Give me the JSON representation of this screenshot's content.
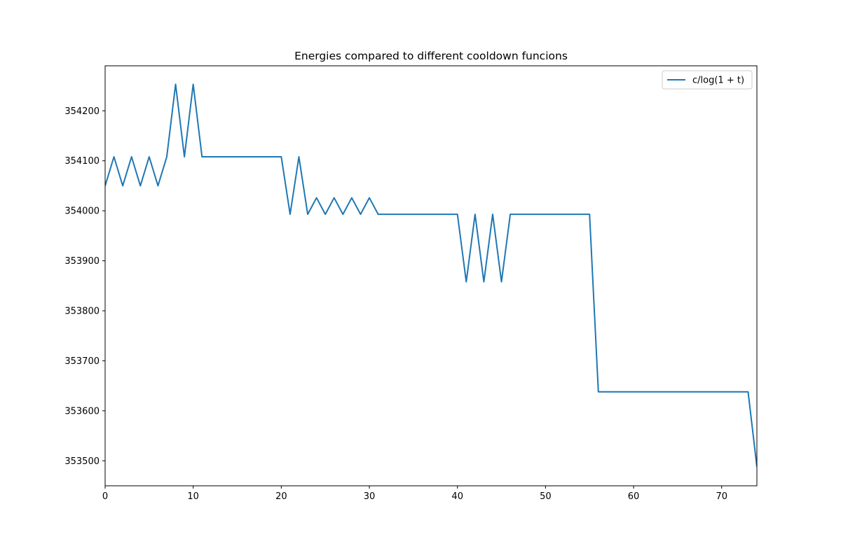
{
  "chart_data": {
    "type": "line",
    "title": "Energies compared to different cooldown funcions",
    "xlabel": "",
    "ylabel": "",
    "xlim": [
      0,
      74
    ],
    "ylim": [
      353450,
      354290
    ],
    "xticks": [
      0,
      10,
      20,
      30,
      40,
      50,
      60,
      70
    ],
    "yticks": [
      353500,
      353600,
      353700,
      353800,
      353900,
      354000,
      354100,
      354200
    ],
    "grid": false,
    "legend_position": "top-right",
    "series": [
      {
        "name": "c/log(1 + t)",
        "color": "#1f77b4",
        "x": [
          0,
          1,
          2,
          3,
          4,
          5,
          6,
          7,
          8,
          9,
          10,
          11,
          12,
          13,
          14,
          15,
          16,
          17,
          18,
          19,
          20,
          21,
          22,
          23,
          24,
          25,
          26,
          27,
          28,
          29,
          30,
          31,
          32,
          33,
          34,
          35,
          36,
          37,
          38,
          39,
          40,
          41,
          42,
          43,
          44,
          45,
          46,
          47,
          48,
          49,
          50,
          51,
          52,
          53,
          54,
          55,
          56,
          57,
          58,
          59,
          60,
          61,
          62,
          63,
          64,
          65,
          66,
          67,
          68,
          69,
          70,
          71,
          72,
          73,
          74
        ],
        "y": [
          354050,
          354108,
          354050,
          354108,
          354050,
          354108,
          354050,
          354108,
          354253,
          354108,
          354253,
          354108,
          354108,
          354108,
          354108,
          354108,
          354108,
          354108,
          354108,
          354108,
          354108,
          353993,
          354108,
          353993,
          354026,
          353993,
          354026,
          353993,
          354026,
          353993,
          354026,
          353993,
          353993,
          353993,
          353993,
          353993,
          353993,
          353993,
          353993,
          353993,
          353993,
          353858,
          353993,
          353858,
          353993,
          353858,
          353993,
          353993,
          353993,
          353993,
          353993,
          353993,
          353993,
          353993,
          353993,
          353993,
          353638,
          353638,
          353638,
          353638,
          353638,
          353638,
          353638,
          353638,
          353638,
          353638,
          353638,
          353638,
          353638,
          353638,
          353638,
          353638,
          353638,
          353638,
          353488
        ]
      }
    ]
  }
}
